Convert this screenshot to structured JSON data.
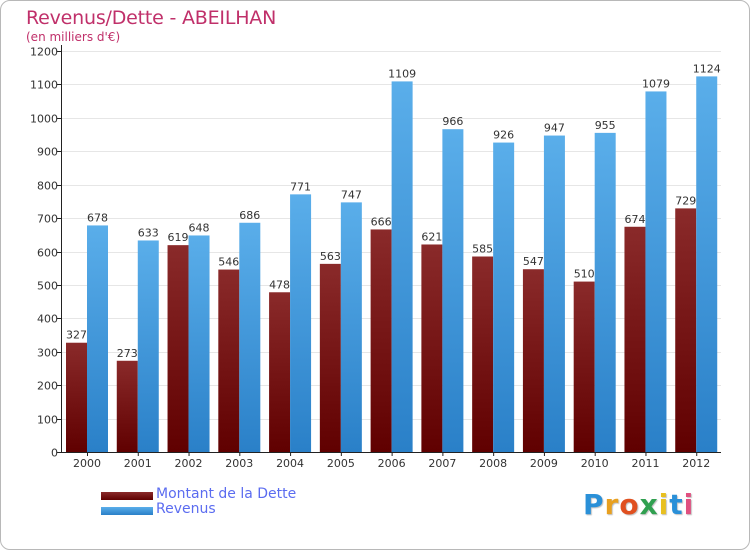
{
  "title": "Revenus/Dette - ABEILHAN",
  "subtitle": "(en milliers d'€)",
  "colors": {
    "title": "#c0306a",
    "debt_top": "#8a2a2a",
    "debt_bottom": "#600000",
    "revenue_top": "#5aaeea",
    "revenue_bottom": "#2a80c8",
    "grid": "#e6e6e6",
    "legend_text": "#5b6cf0"
  },
  "legend": {
    "debt_label": "Montant de la Dette",
    "revenue_label": "Revenus"
  },
  "logo": {
    "letters": [
      "P",
      "r",
      "o",
      "x",
      "i",
      "t",
      "i"
    ],
    "colors": [
      "#2a90d8",
      "#e8a020",
      "#e05020",
      "#30a050",
      "#e8c020",
      "#2a90d8",
      "#e05080"
    ]
  },
  "chart_data": {
    "type": "bar",
    "title": "Revenus/Dette - ABEILHAN",
    "ylabel": "(en milliers d'€)",
    "xlabel": "",
    "categories": [
      "2000",
      "2001",
      "2002",
      "2003",
      "2004",
      "2005",
      "2006",
      "2007",
      "2008",
      "2009",
      "2010",
      "2011",
      "2012"
    ],
    "series": [
      {
        "name": "Montant de la Dette",
        "values": [
          327,
          273,
          619,
          546,
          478,
          563,
          666,
          621,
          585,
          547,
          510,
          674,
          729
        ]
      },
      {
        "name": "Revenus",
        "values": [
          678,
          633,
          648,
          686,
          771,
          747,
          1109,
          966,
          926,
          947,
          955,
          1079,
          1124
        ]
      }
    ],
    "ylim": [
      0,
      1200
    ],
    "yticks": [
      0,
      100,
      200,
      300,
      400,
      500,
      600,
      700,
      800,
      900,
      1000,
      1100,
      1200
    ],
    "grid": true,
    "legend_position": "bottom-left"
  }
}
